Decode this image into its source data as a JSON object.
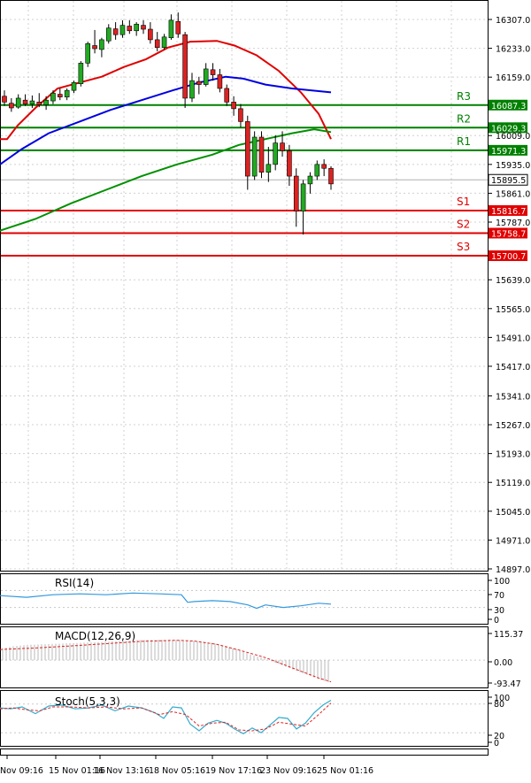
{
  "chart_data": [
    {
      "type": "candlestick",
      "title": "",
      "ylim": [
        14897.0,
        16360.0
      ],
      "y_ticks": [
        "16307.0",
        "16233.0",
        "16159.0",
        "16087.3",
        "16029.3",
        "16009.0",
        "15971.3",
        "15935.0",
        "15895.5",
        "15861.0",
        "15816.7",
        "15787.0",
        "15758.7",
        "15700.7",
        "15639.0",
        "15565.0",
        "15491.0",
        "15417.0",
        "15341.0",
        "15267.0",
        "15193.0",
        "15119.0",
        "15045.0",
        "14971.0",
        "14897.0"
      ],
      "x_tick_labels": [
        "Nov 09:16",
        "15 Nov 01:16",
        "16 Nov 13:16",
        "18 Nov 05:16",
        "19 Nov 17:16",
        "23 Nov 09:16",
        "25 Nov 01:16"
      ],
      "current_price": "15895.5",
      "levels": [
        {
          "name": "R3",
          "value": 16087.3,
          "label": "16087.3",
          "color": "#008000"
        },
        {
          "name": "R2",
          "value": 16029.3,
          "label": "16029.3",
          "color": "#008000"
        },
        {
          "name": "R1",
          "value": 15971.3,
          "label": "15971.3",
          "color": "#008000"
        },
        {
          "name": "S1",
          "value": 15816.7,
          "label": "15816.7",
          "color": "#e00000"
        },
        {
          "name": "S2",
          "value": 15758.7,
          "label": "15758.7",
          "color": "#e00000"
        },
        {
          "name": "S3",
          "value": 15700.7,
          "label": "15700.7",
          "color": "#e00000"
        }
      ],
      "candles": [
        [
          16110,
          16125,
          16085,
          16095
        ],
        [
          16092,
          16105,
          16070,
          16080
        ],
        [
          16082,
          16115,
          16078,
          16105
        ],
        [
          16100,
          16115,
          16085,
          16090
        ],
        [
          16090,
          16112,
          16080,
          16098
        ],
        [
          16095,
          16118,
          16082,
          16088
        ],
        [
          16088,
          16110,
          16075,
          16100
        ],
        [
          16098,
          16125,
          16090,
          16118
        ],
        [
          16115,
          16130,
          16100,
          16108
        ],
        [
          16108,
          16130,
          16100,
          16125
        ],
        [
          16125,
          16150,
          16118,
          16145
        ],
        [
          16142,
          16200,
          16135,
          16195
        ],
        [
          16195,
          16250,
          16185,
          16245
        ],
        [
          16240,
          16280,
          16220,
          16232
        ],
        [
          16230,
          16260,
          16210,
          16255
        ],
        [
          16252,
          16295,
          16245,
          16285
        ],
        [
          16283,
          16300,
          16255,
          16268
        ],
        [
          16268,
          16305,
          16260,
          16292
        ],
        [
          16290,
          16305,
          16270,
          16278
        ],
        [
          16278,
          16300,
          16265,
          16295
        ],
        [
          16292,
          16305,
          16270,
          16282
        ],
        [
          16282,
          16300,
          16245,
          16255
        ],
        [
          16255,
          16275,
          16225,
          16235
        ],
        [
          16235,
          16270,
          16230,
          16262
        ],
        [
          16260,
          16320,
          16255,
          16305
        ],
        [
          16302,
          16325,
          16260,
          16270
        ],
        [
          16268,
          16275,
          16080,
          16105
        ],
        [
          16105,
          16170,
          16095,
          16150
        ],
        [
          16148,
          16160,
          16115,
          16140
        ],
        [
          16140,
          16195,
          16135,
          16180
        ],
        [
          16178,
          16195,
          16150,
          16165
        ],
        [
          16165,
          16180,
          16120,
          16130
        ],
        [
          16130,
          16140,
          16085,
          16095
        ],
        [
          16095,
          16110,
          16060,
          16078
        ],
        [
          16078,
          16090,
          16030,
          16045
        ],
        [
          16045,
          16060,
          15870,
          15905
        ],
        [
          15905,
          16020,
          15895,
          16005
        ],
        [
          16005,
          16020,
          15900,
          15915
        ],
        [
          15915,
          15980,
          15890,
          15935
        ],
        [
          15935,
          16010,
          15920,
          15990
        ],
        [
          15990,
          16020,
          15955,
          15970
        ],
        [
          15970,
          15985,
          15880,
          15905
        ],
        [
          15905,
          15925,
          15775,
          15815
        ],
        [
          15815,
          15895,
          15755,
          15885
        ],
        [
          15885,
          15915,
          15860,
          15905
        ],
        [
          15905,
          15945,
          15895,
          15935
        ],
        [
          15935,
          15948,
          15905,
          15925
        ],
        [
          15925,
          15930,
          15870,
          15885
        ]
      ],
      "series": [
        {
          "name": "",
          "color": "#e00000",
          "values": [
            [
              0,
              16000
            ],
            [
              8,
              16000
            ],
            [
              20,
              16035
            ],
            [
              40,
              16080
            ],
            [
              65,
              16130
            ],
            [
              90,
              16145
            ],
            [
              115,
              16160
            ],
            [
              140,
              16185
            ],
            [
              165,
              16205
            ],
            [
              190,
              16235
            ],
            [
              215,
              16250
            ],
            [
              245,
              16252
            ],
            [
              265,
              16240
            ],
            [
              290,
              16215
            ],
            [
              315,
              16175
            ],
            [
              340,
              16120
            ],
            [
              360,
              16065
            ],
            [
              374,
              16000
            ]
          ]
        },
        {
          "name": "",
          "color": "#0000e0",
          "values": [
            [
              0,
              15935
            ],
            [
              25,
              15975
            ],
            [
              55,
              16015
            ],
            [
              90,
              16045
            ],
            [
              125,
              16075
            ],
            [
              160,
              16100
            ],
            [
              195,
              16125
            ],
            [
              225,
              16145
            ],
            [
              255,
              16160
            ],
            [
              275,
              16155
            ],
            [
              300,
              16140
            ],
            [
              330,
              16130
            ],
            [
              374,
              16120
            ]
          ]
        },
        {
          "name": "",
          "color": "#009000",
          "values": [
            [
              0,
              15765
            ],
            [
              40,
              15795
            ],
            [
              80,
              15835
            ],
            [
              120,
              15870
            ],
            [
              160,
              15905
            ],
            [
              200,
              15935
            ],
            [
              240,
              15960
            ],
            [
              270,
              15985
            ],
            [
              300,
              16000
            ],
            [
              330,
              16015
            ],
            [
              355,
              16025
            ],
            [
              374,
              16018
            ]
          ]
        }
      ],
      "indicators": [
        {
          "name": "RSI(14)",
          "ticks": [
            "100",
            "70",
            "30",
            "0"
          ],
          "ylim": [
            0,
            100
          ],
          "values": [
            [
              0,
              58
            ],
            [
              30,
              54
            ],
            [
              60,
              60
            ],
            [
              90,
              62
            ],
            [
              120,
              60
            ],
            [
              150,
              64
            ],
            [
              180,
              62
            ],
            [
              205,
              60
            ],
            [
              212,
              42
            ],
            [
              220,
              44
            ],
            [
              240,
              46
            ],
            [
              260,
              44
            ],
            [
              280,
              36
            ],
            [
              290,
              28
            ],
            [
              300,
              36
            ],
            [
              320,
              30
            ],
            [
              340,
              34
            ],
            [
              360,
              40
            ],
            [
              374,
              38
            ]
          ]
        },
        {
          "name": "MACD(12,26,9)",
          "ticks": [
            "115.37",
            "0.00",
            "-93.47"
          ],
          "ylim": [
            -93.47,
            115.37
          ],
          "hist": [
            [
              0,
              45
            ],
            [
              15,
              55
            ],
            [
              30,
              60
            ],
            [
              45,
              62
            ],
            [
              60,
              64
            ],
            [
              75,
              66
            ],
            [
              90,
              68
            ],
            [
              105,
              70
            ],
            [
              120,
              72
            ],
            [
              135,
              76
            ],
            [
              150,
              78
            ],
            [
              165,
              80
            ],
            [
              180,
              80
            ],
            [
              195,
              80
            ],
            [
              210,
              78
            ],
            [
              225,
              74
            ],
            [
              240,
              68
            ],
            [
              255,
              55
            ],
            [
              270,
              40
            ],
            [
              285,
              20
            ],
            [
              300,
              5
            ],
            [
              315,
              -15
            ],
            [
              330,
              -35
            ],
            [
              345,
              -55
            ],
            [
              360,
              -75
            ],
            [
              374,
              -90
            ]
          ],
          "signal": [
            [
              0,
              42
            ],
            [
              40,
              48
            ],
            [
              80,
              56
            ],
            [
              120,
              65
            ],
            [
              160,
              74
            ],
            [
              200,
              78
            ],
            [
              220,
              75
            ],
            [
              245,
              62
            ],
            [
              270,
              40
            ],
            [
              300,
              10
            ],
            [
              330,
              -30
            ],
            [
              360,
              -70
            ],
            [
              374,
              -85
            ]
          ]
        },
        {
          "name": "Stoch(5,3,3)",
          "ticks": [
            "100",
            "80",
            "20",
            "0"
          ],
          "ylim": [
            0,
            100
          ],
          "k": [
            [
              0,
              72
            ],
            [
              12,
              70
            ],
            [
              25,
              74
            ],
            [
              40,
              60
            ],
            [
              55,
              76
            ],
            [
              70,
              78
            ],
            [
              85,
              70
            ],
            [
              100,
              72
            ],
            [
              115,
              78
            ],
            [
              130,
              66
            ],
            [
              145,
              76
            ],
            [
              160,
              72
            ],
            [
              175,
              62
            ],
            [
              185,
              50
            ],
            [
              195,
              74
            ],
            [
              205,
              72
            ],
            [
              215,
              38
            ],
            [
              225,
              24
            ],
            [
              235,
              40
            ],
            [
              245,
              46
            ],
            [
              255,
              40
            ],
            [
              265,
              28
            ],
            [
              275,
              18
            ],
            [
              285,
              30
            ],
            [
              295,
              20
            ],
            [
              305,
              36
            ],
            [
              315,
              52
            ],
            [
              325,
              50
            ],
            [
              335,
              28
            ],
            [
              345,
              40
            ],
            [
              355,
              62
            ],
            [
              365,
              78
            ],
            [
              374,
              88
            ]
          ],
          "d": [
            [
              0,
              70
            ],
            [
              15,
              72
            ],
            [
              30,
              68
            ],
            [
              45,
              66
            ],
            [
              60,
              74
            ],
            [
              80,
              74
            ],
            [
              100,
              72
            ],
            [
              120,
              74
            ],
            [
              140,
              70
            ],
            [
              160,
              72
            ],
            [
              180,
              58
            ],
            [
              195,
              64
            ],
            [
              210,
              58
            ],
            [
              225,
              34
            ],
            [
              240,
              40
            ],
            [
              255,
              42
            ],
            [
              270,
              26
            ],
            [
              285,
              24
            ],
            [
              300,
              28
            ],
            [
              315,
              42
            ],
            [
              330,
              38
            ],
            [
              345,
              34
            ],
            [
              360,
              58
            ],
            [
              374,
              82
            ]
          ]
        }
      ]
    }
  ]
}
